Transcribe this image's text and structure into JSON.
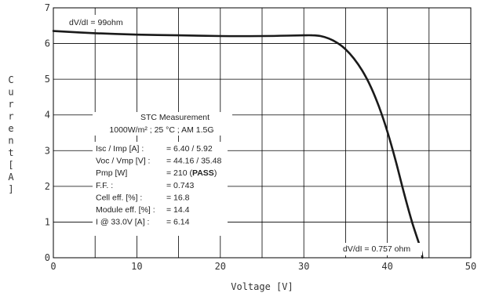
{
  "chart_data": {
    "type": "line",
    "xlabel": "Voltage [V]",
    "ylabel": "Current [A]",
    "xlim": [
      0,
      50
    ],
    "ylim": [
      0,
      7
    ],
    "x_ticks": [
      "0",
      "10",
      "20",
      "30",
      "40",
      "50"
    ],
    "y_ticks": [
      "0",
      "1",
      "2",
      "3",
      "4",
      "5",
      "6",
      "7"
    ],
    "grid": true,
    "series": [
      {
        "color": "#1a1a1a",
        "points": [
          [
            0,
            6.35
          ],
          [
            5,
            6.29
          ],
          [
            10,
            6.25
          ],
          [
            15,
            6.23
          ],
          [
            20,
            6.21
          ],
          [
            25,
            6.21
          ],
          [
            28,
            6.22
          ],
          [
            30,
            6.23
          ],
          [
            31,
            6.23
          ],
          [
            32,
            6.21
          ],
          [
            33,
            6.14
          ],
          [
            34,
            6.02
          ],
          [
            35,
            5.84
          ],
          [
            36,
            5.58
          ],
          [
            37,
            5.24
          ],
          [
            38,
            4.8
          ],
          [
            39,
            4.23
          ],
          [
            40,
            3.54
          ],
          [
            41,
            2.72
          ],
          [
            42,
            1.81
          ],
          [
            43,
            0.97
          ],
          [
            44,
            0.25
          ],
          [
            44.2,
            0
          ]
        ]
      }
    ],
    "annotations": {
      "slope_top": "dV/dI = 99ohm",
      "slope_bottom": "dV/dI = 0.757 ohm",
      "stc_title": "STC Measurement",
      "stc_conditions": "1000W/m² ; 25 °C ; AM 1.5G",
      "stats": [
        {
          "label": "Isc / Imp [A] :",
          "value": "= 6.40 / 5.92"
        },
        {
          "label": "Voc / Vmp [V] :",
          "value": "= 44.16 / 35.48"
        },
        {
          "label": "Pmp [W]",
          "value": "= 210 (",
          "emph": "PASS",
          "suffix": ")"
        },
        {
          "label": "F.F. :",
          "value": "= 0.743"
        },
        {
          "label": "Cell eff. [%] :",
          "value": "= 16.8"
        },
        {
          "label": "Module eff. [%] :",
          "value": "= 14.4"
        },
        {
          "label": "I @ 33.0V [A] :",
          "value": "= 6.14"
        }
      ]
    }
  }
}
